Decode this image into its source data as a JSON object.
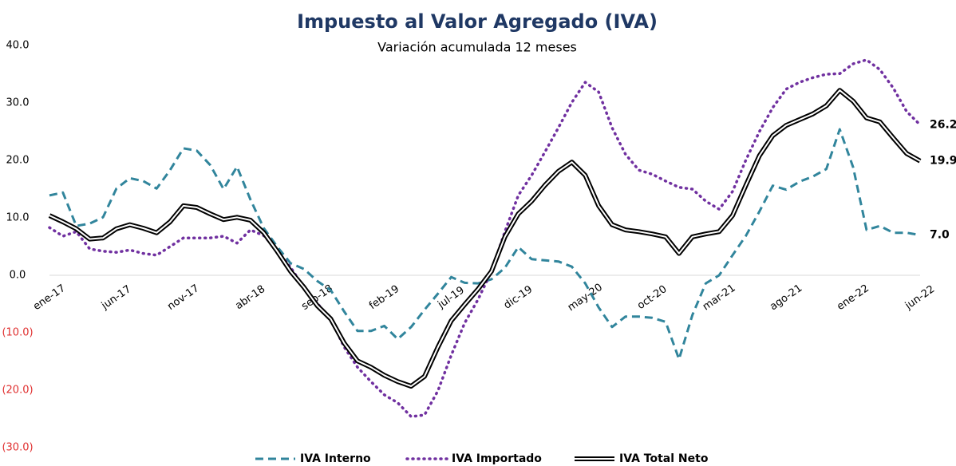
{
  "chart_data": {
    "type": "line",
    "title": "Impuesto al Valor Agregado (IVA)",
    "subtitle": "Variación acumulada 12 meses",
    "categories": [
      "ene-17",
      null,
      null,
      null,
      null,
      "jun-17",
      null,
      null,
      null,
      null,
      "nov-17",
      null,
      null,
      null,
      null,
      "abr-18",
      null,
      null,
      null,
      null,
      "sep-18",
      null,
      null,
      null,
      null,
      "feb-19",
      null,
      null,
      null,
      null,
      "jul-19",
      null,
      null,
      null,
      null,
      "dic-19",
      null,
      null,
      null,
      null,
      "may-20",
      null,
      null,
      null,
      null,
      "oct-20",
      null,
      null,
      null,
      null,
      "mar-21",
      null,
      null,
      null,
      null,
      "ago-21",
      null,
      null,
      null,
      null,
      "ene-22",
      null,
      null,
      null,
      null,
      "jun-22"
    ],
    "series": [
      {
        "name": "IVA Interno",
        "color": "#31859c",
        "style": "dashed",
        "end_label": "7.0",
        "values": [
          13.9,
          14.4,
          8.6,
          9.0,
          10.1,
          15.1,
          16.9,
          16.4,
          15.1,
          18.3,
          22.1,
          21.7,
          19.2,
          15.0,
          18.9,
          13.2,
          8.2,
          5.0,
          2.1,
          1.1,
          -1.0,
          -2.6,
          -6.3,
          -9.7,
          -9.7,
          -8.8,
          -11.1,
          -9.0,
          -6.0,
          -3.2,
          -0.3,
          -1.3,
          -1.4,
          -0.7,
          1.3,
          4.9,
          2.8,
          2.6,
          2.4,
          1.5,
          -1.4,
          -5.6,
          -9.0,
          -7.2,
          -7.2,
          -7.4,
          -8.1,
          -14.6,
          -6.9,
          -1.4,
          0.0,
          3.5,
          6.9,
          11.1,
          15.6,
          14.9,
          16.3,
          17.2,
          18.5,
          25.4,
          18.8,
          7.9,
          8.6,
          7.4,
          7.4,
          7.0
        ]
      },
      {
        "name": "IVA Importado",
        "color": "#7030a0",
        "style": "dotted",
        "end_label": "26.2",
        "values": [
          8.3,
          6.8,
          7.6,
          4.6,
          4.2,
          4.0,
          4.4,
          3.8,
          3.5,
          5.0,
          6.5,
          6.5,
          6.5,
          6.8,
          5.6,
          7.9,
          6.9,
          4.3,
          1.4,
          -2.1,
          -4.9,
          -7.6,
          -12.5,
          -16.0,
          -18.5,
          -20.8,
          -22.2,
          -24.6,
          -24.3,
          -20.1,
          -13.9,
          -8.3,
          -4.2,
          0.7,
          7.6,
          13.9,
          17.4,
          21.5,
          25.7,
          30.1,
          33.6,
          31.9,
          25.7,
          21.1,
          18.3,
          17.6,
          16.4,
          15.3,
          15.0,
          12.9,
          11.5,
          14.6,
          20.1,
          25.0,
          29.2,
          32.4,
          33.6,
          34.4,
          35.0,
          35.1,
          36.8,
          37.5,
          35.8,
          32.6,
          28.5,
          26.2
        ]
      },
      {
        "name": "IVA Total Neto",
        "color": "#000000",
        "style": "double",
        "end_label": "19.9",
        "values": [
          10.4,
          9.3,
          8.1,
          6.3,
          6.5,
          8.1,
          8.8,
          8.2,
          7.4,
          9.3,
          12.1,
          11.8,
          10.7,
          9.7,
          10.1,
          9.6,
          7.4,
          4.2,
          0.7,
          -2.1,
          -5.3,
          -7.6,
          -11.8,
          -14.9,
          -16.0,
          -17.4,
          -18.5,
          -19.3,
          -17.6,
          -12.5,
          -7.9,
          -5.1,
          -2.4,
          0.7,
          6.7,
          10.7,
          12.9,
          15.7,
          18.1,
          19.7,
          17.4,
          12.1,
          8.8,
          7.9,
          7.6,
          7.2,
          6.7,
          3.8,
          6.7,
          7.2,
          7.6,
          10.4,
          15.7,
          20.8,
          24.3,
          26.1,
          27.1,
          28.1,
          29.5,
          32.2,
          30.3,
          27.4,
          26.7,
          23.9,
          21.2,
          19.9
        ]
      }
    ],
    "ylim": [
      -30,
      40
    ],
    "yticks": [
      {
        "value": -30,
        "label": "(30.0)"
      },
      {
        "value": -20,
        "label": "(20.0)"
      },
      {
        "value": -10,
        "label": "(10.0)"
      },
      {
        "value": 0,
        "label": "0.0"
      },
      {
        "value": 10,
        "label": "10.0"
      },
      {
        "value": 20,
        "label": "20.0"
      },
      {
        "value": 30,
        "label": "30.0"
      },
      {
        "value": 40,
        "label": "40.0"
      }
    ],
    "grid": false,
    "legend": "bottom"
  }
}
